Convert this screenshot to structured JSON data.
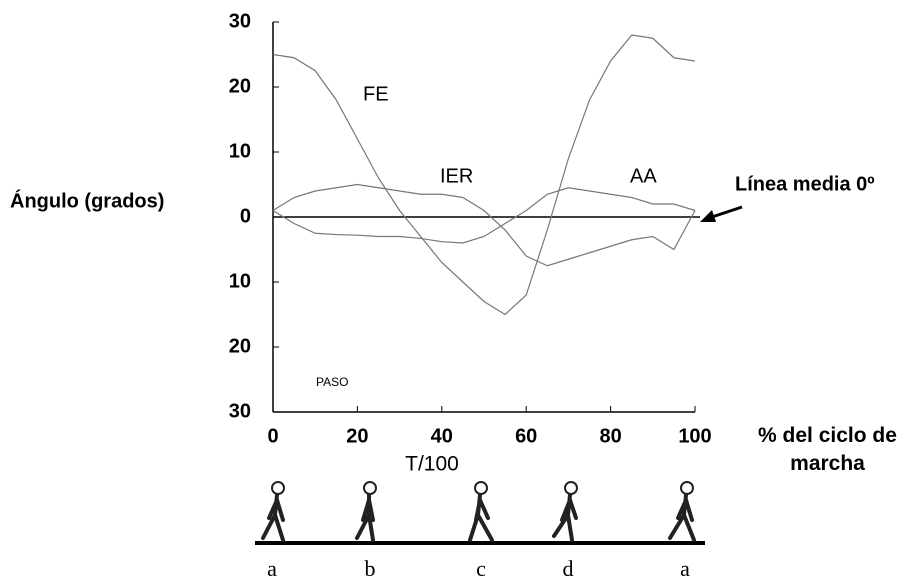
{
  "chart_data": {
    "type": "line",
    "y_label": "Ángulo (grados)",
    "x_label": "% del ciclo de marcha",
    "x_sublabel": "T/100",
    "zero_line_label": "Línea media 0º",
    "step_label": "PASO",
    "phases": [
      "a",
      "b",
      "c",
      "d",
      "a"
    ],
    "x": [
      0,
      5,
      10,
      15,
      20,
      25,
      30,
      35,
      40,
      45,
      50,
      55,
      60,
      65,
      70,
      75,
      80,
      85,
      90,
      95,
      100
    ],
    "series": [
      {
        "name": "FE",
        "color": "#777777",
        "values": [
          25,
          24.5,
          22.5,
          18,
          12,
          6,
          1,
          -3,
          -7,
          -10,
          -13,
          -15,
          -12,
          -2,
          9,
          18,
          24,
          28,
          27.5,
          24.5,
          24
        ]
      },
      {
        "name": "IER",
        "color": "#777777",
        "values": [
          1,
          3,
          4,
          4.5,
          5,
          4.5,
          4,
          3.5,
          3.5,
          3,
          1,
          -2,
          -6,
          -7.5,
          -6.5,
          -5.5,
          -4.5,
          -3.5,
          -3,
          -5,
          1
        ]
      },
      {
        "name": "AA",
        "color": "#777777",
        "values": [
          1,
          -1,
          -2.5,
          -2.7,
          -2.8,
          -3,
          -3,
          -3.3,
          -3.8,
          -4,
          -3,
          -1,
          1,
          3.5,
          4.5,
          4,
          3.5,
          3,
          2,
          2,
          1
        ]
      }
    ],
    "xlim": [
      0,
      100
    ],
    "xticks": [
      0,
      20,
      40,
      60,
      80,
      100
    ],
    "ylim": [
      -30,
      30
    ],
    "yticks": [
      {
        "value": -30,
        "label": "30"
      },
      {
        "value": -20,
        "label": "20"
      },
      {
        "value": -10,
        "label": "10"
      },
      0,
      10,
      20,
      30
    ],
    "grid": false
  }
}
